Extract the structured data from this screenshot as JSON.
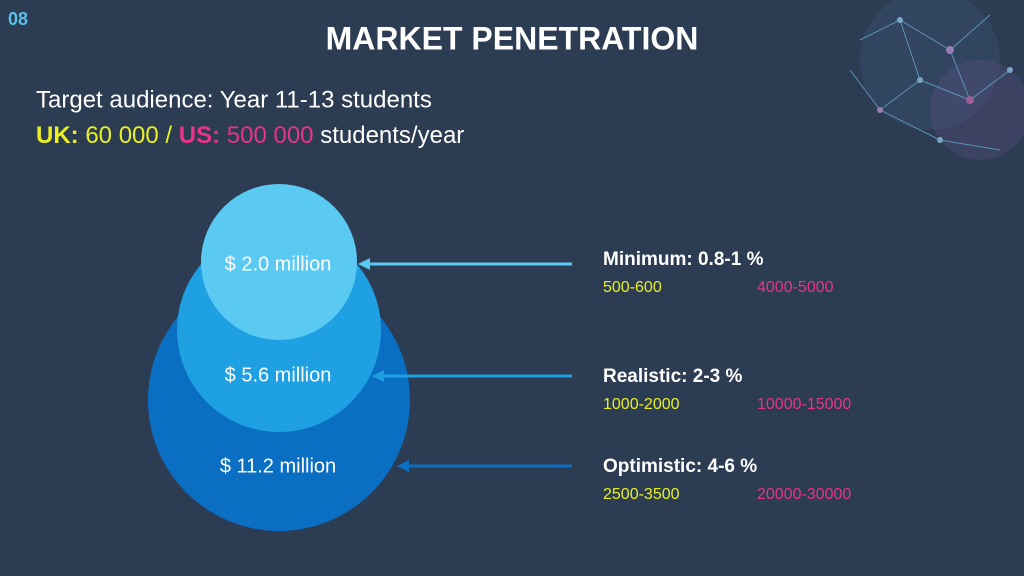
{
  "slide_number": "08",
  "title": "MARKET PENETRATION",
  "audience": {
    "line": "Target audience: Year 11-13 students",
    "uk_label": "UK:",
    "uk_value": "60 000",
    "separator": "/",
    "us_label": "US:",
    "us_value": "500 000",
    "unit": "students/year"
  },
  "circles": [
    {
      "label": "$ 2.0 million"
    },
    {
      "label": "$ 5.6 million"
    },
    {
      "label": "$ 11.2 million"
    }
  ],
  "scenarios": [
    {
      "name": "Minimum: 0.8-1 %",
      "uk": "500-600",
      "us": "4000-5000"
    },
    {
      "name": "Realistic: 2-3 %",
      "uk": "1000-2000",
      "us": "10000-15000"
    },
    {
      "name": "Optimistic: 4-6 %",
      "uk": "2500-3500",
      "us": "20000-30000"
    }
  ]
}
